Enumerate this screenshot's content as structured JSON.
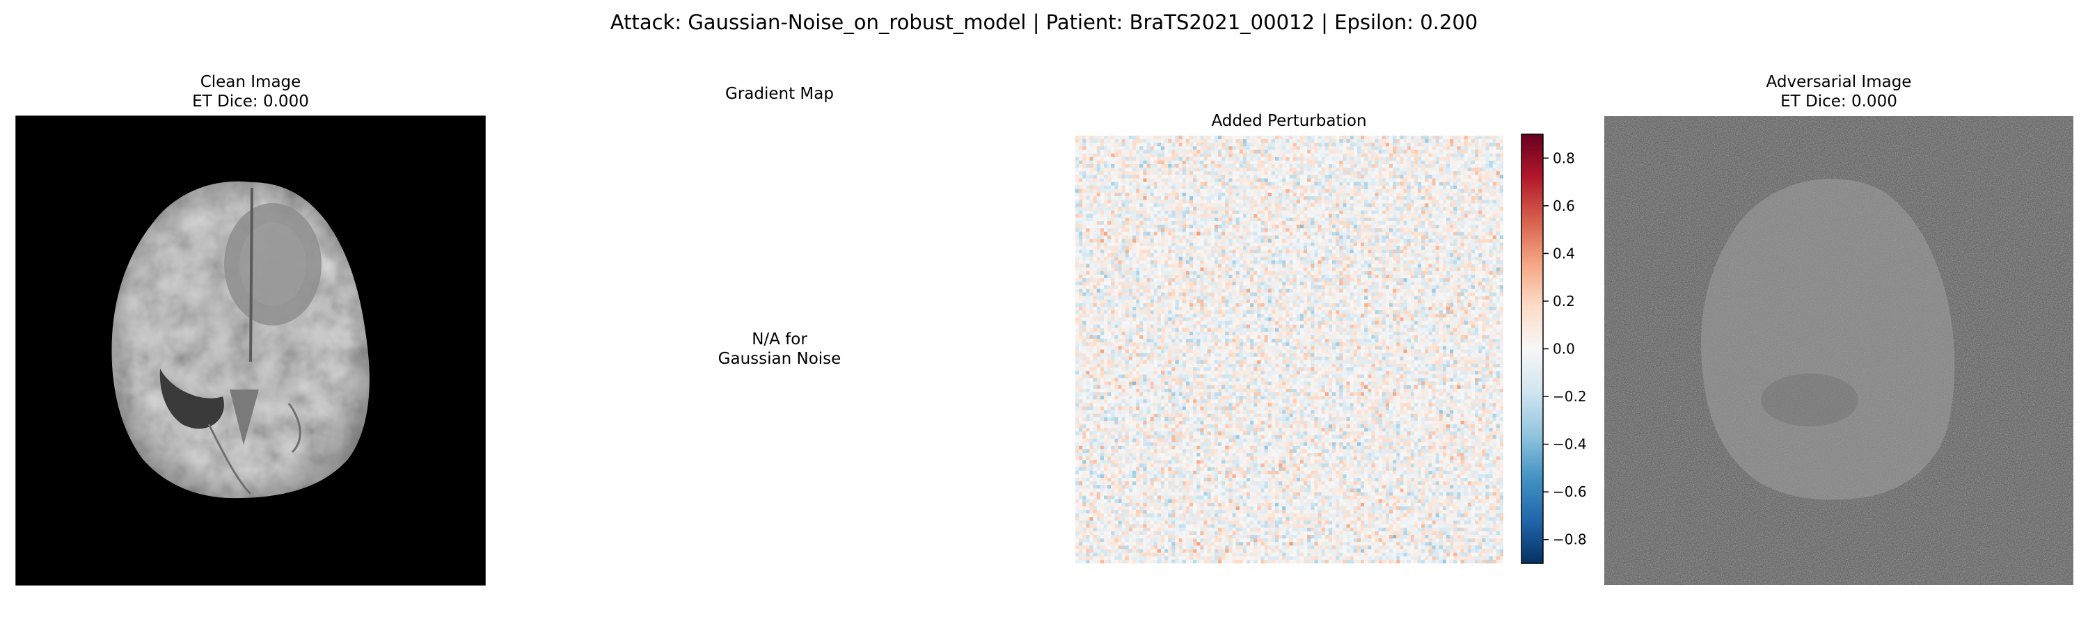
{
  "chart_data": {
    "type": "heatmap",
    "title": "Attack: Gaussian-Noise_on_robust_model | Patient: BraTS2021_00012 | Epsilon: 0.200",
    "panels": [
      {
        "title_lines": [
          "Clean Image",
          "ET Dice: 0.000"
        ],
        "kind": "image",
        "colormap": "gray"
      },
      {
        "title_lines": [
          "Gradient Map"
        ],
        "kind": "text",
        "text_lines": [
          "N/A for",
          "Gaussian Noise"
        ]
      },
      {
        "title_lines": [
          "Added Perturbation"
        ],
        "kind": "heatmap",
        "colormap": "RdBu_r",
        "colorbar": {
          "vmin": -0.9,
          "vmax": 0.9,
          "ticks": [
            -0.8,
            -0.6,
            -0.4,
            -0.2,
            0.0,
            0.2,
            0.4,
            0.6,
            0.8
          ],
          "tick_labels": [
            "−0.8",
            "−0.6",
            "−0.4",
            "−0.2",
            "0.0",
            "0.2",
            "0.4",
            "0.6",
            "0.8"
          ]
        }
      },
      {
        "title_lines": [
          "Adversarial Image",
          "ET Dice: 0.000"
        ],
        "kind": "image",
        "colormap": "gray"
      }
    ]
  },
  "colors": {
    "background": "#ffffff",
    "image_background": "#000000",
    "axes_frame": "#000000",
    "colormap_rdbu_r": [
      "#053061",
      "#2166ac",
      "#4393c3",
      "#92c5de",
      "#d1e5f0",
      "#f7f7f7",
      "#fddbc7",
      "#f4a582",
      "#d6604d",
      "#b2182b",
      "#67001f"
    ]
  }
}
